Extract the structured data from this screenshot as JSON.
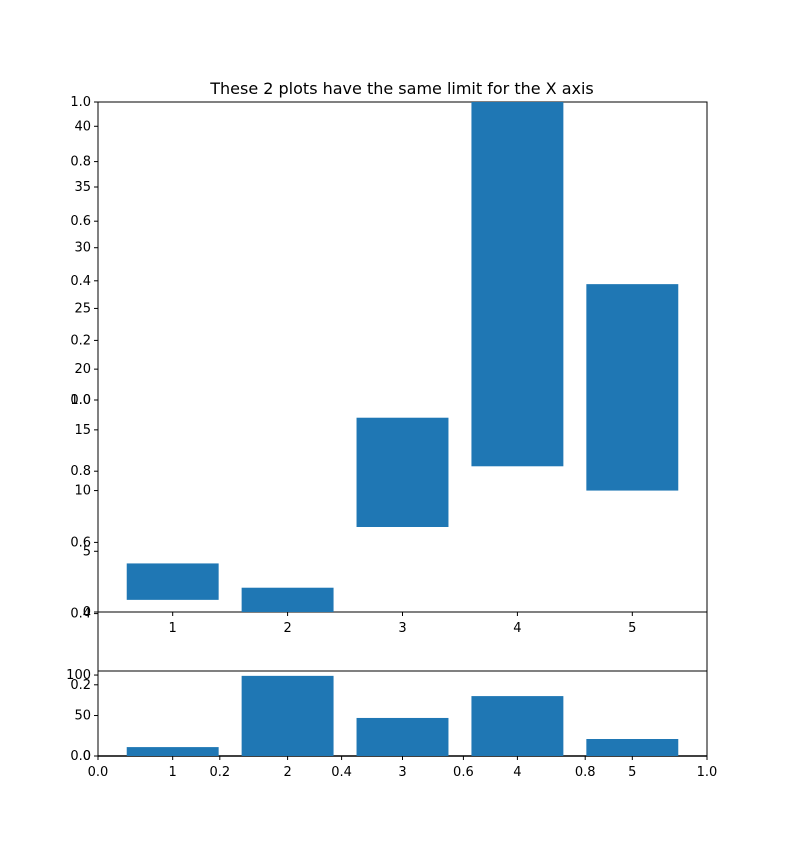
{
  "title": "These 2 plots have the same limit for the X axis",
  "colors": {
    "bar": "#1f77b4",
    "axis": "#000000",
    "background": "#ffffff"
  },
  "chart_data": [
    {
      "type": "bar",
      "name": "main-bars",
      "categories": [
        "1",
        "2",
        "3",
        "4",
        "5"
      ],
      "x": [
        1,
        2,
        3,
        4,
        5
      ],
      "bottom": [
        1,
        0,
        7,
        12,
        10
      ],
      "top": [
        4,
        2,
        16,
        42,
        27
      ],
      "xlim": [
        0.35,
        5.65
      ],
      "ylim": [
        0,
        42
      ],
      "ytick_values": [
        0,
        5,
        10,
        15,
        20,
        25,
        30,
        35,
        40
      ],
      "ytick_labels": [
        "0",
        "5",
        "10",
        "15",
        "20",
        "25",
        "30",
        "35",
        "40"
      ]
    },
    {
      "type": "bar",
      "name": "lower-bars",
      "categories": [
        "1",
        "2",
        "3",
        "4",
        "5"
      ],
      "x": [
        1,
        2,
        3,
        4,
        5
      ],
      "values": [
        11,
        99,
        47,
        74,
        21
      ],
      "xlim": [
        0.35,
        5.65
      ],
      "ylim": [
        0,
        105
      ],
      "ytick_values": [
        0,
        50,
        100
      ],
      "ytick_labels": [
        "0",
        "50",
        "100"
      ]
    }
  ],
  "axes_overlay": {
    "yticks_upper": [
      "1.0",
      "0.8",
      "0.6",
      "0.4",
      "0.2",
      "0.0"
    ],
    "yticks_lower": [
      "1.0",
      "0.8",
      "0.6",
      "0.4",
      "0.2",
      "0.0"
    ],
    "xticks": [
      "0.0",
      "0.2",
      "0.4",
      "0.6",
      "0.8",
      "1.0"
    ]
  }
}
